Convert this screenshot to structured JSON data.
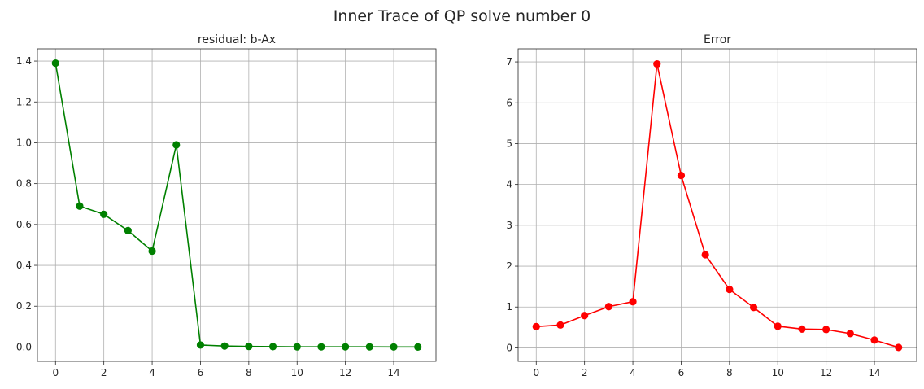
{
  "suptitle": "Inner Trace of QP solve number 0",
  "chart_data": [
    {
      "type": "line",
      "title": "residual: b-Ax",
      "xlabel": "",
      "ylabel": "",
      "color": "#008000",
      "marker": "circle",
      "grid": true,
      "xlim": [
        -0.75,
        15.75
      ],
      "ylim": [
        -0.07,
        1.46
      ],
      "xticks": [
        0,
        2,
        4,
        6,
        8,
        10,
        12,
        14
      ],
      "xtick_labels": [
        "0",
        "2",
        "4",
        "6",
        "8",
        "10",
        "12",
        "14"
      ],
      "yticks": [
        0,
        0.2,
        0.4,
        0.6,
        0.8,
        1.0,
        1.2,
        1.4
      ],
      "ytick_labels": [
        "0.0",
        "0.2",
        "0.4",
        "0.6",
        "0.8",
        "1.0",
        "1.2",
        "1.4"
      ],
      "x": [
        0,
        1,
        2,
        3,
        4,
        5,
        6,
        7,
        8,
        9,
        10,
        11,
        12,
        13,
        14,
        15
      ],
      "y": [
        1.39,
        0.69,
        0.65,
        0.57,
        0.47,
        0.99,
        0.01,
        0.005,
        0.003,
        0.002,
        0.001,
        0.001,
        0.001,
        0.001,
        0.0005,
        0.0003
      ]
    },
    {
      "type": "line",
      "title": "Error",
      "xlabel": "",
      "ylabel": "",
      "color": "#ff0000",
      "marker": "circle",
      "grid": true,
      "xlim": [
        -0.75,
        15.75
      ],
      "ylim": [
        -0.33,
        7.32
      ],
      "xticks": [
        0,
        2,
        4,
        6,
        8,
        10,
        12,
        14
      ],
      "xtick_labels": [
        "0",
        "2",
        "4",
        "6",
        "8",
        "10",
        "12",
        "14"
      ],
      "yticks": [
        0,
        1,
        2,
        3,
        4,
        5,
        6,
        7
      ],
      "ytick_labels": [
        "0",
        "1",
        "2",
        "3",
        "4",
        "5",
        "6",
        "7"
      ],
      "x": [
        0,
        1,
        2,
        3,
        4,
        5,
        6,
        7,
        8,
        9,
        10,
        11,
        12,
        13,
        14,
        15
      ],
      "y": [
        0.52,
        0.56,
        0.79,
        1.01,
        1.13,
        6.95,
        4.22,
        2.28,
        1.43,
        0.99,
        0.53,
        0.46,
        0.45,
        0.35,
        0.19,
        0.01
      ]
    }
  ]
}
